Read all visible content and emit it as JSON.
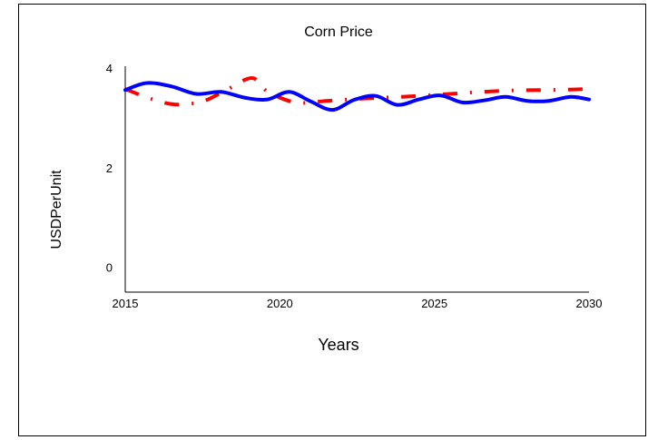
{
  "chart_data": {
    "type": "line",
    "title": "Corn Price",
    "xlabel": "Years",
    "ylabel": "USDPerUnit",
    "xlim": [
      2015,
      2030
    ],
    "ylim": [
      -0.5,
      4
    ],
    "x_ticks": [
      "2015",
      "2020",
      "2025",
      "2030"
    ],
    "y_ticks": [
      "0",
      "2",
      "4"
    ],
    "grid": false,
    "legend": "none",
    "series": [
      {
        "color": "#0000ff",
        "style": "solid",
        "x": [
          2015,
          2015.7,
          2016.5,
          2017.3,
          2018.1,
          2018.9,
          2019.6,
          2020.3,
          2021.0,
          2021.7,
          2022.4,
          2023.1,
          2023.8,
          2024.5,
          2025.2,
          2025.9,
          2026.6,
          2027.3,
          2028.0,
          2028.7,
          2029.4,
          2030
        ],
        "y": [
          3.56,
          3.7,
          3.63,
          3.48,
          3.52,
          3.4,
          3.37,
          3.52,
          3.33,
          3.16,
          3.36,
          3.44,
          3.26,
          3.37,
          3.45,
          3.31,
          3.35,
          3.42,
          3.34,
          3.34,
          3.42,
          3.37
        ]
      },
      {
        "color": "#ff0000",
        "style": "dash-dot",
        "x": [
          2015,
          2015.8,
          2016.6,
          2017.5,
          2018.3,
          2019.1,
          2019.6,
          2020.5,
          2021.5,
          2022.5,
          2023.5,
          2024.5,
          2025.5,
          2026.5,
          2027.5,
          2028.5,
          2029.5,
          2030
        ],
        "y": [
          3.58,
          3.39,
          3.27,
          3.33,
          3.57,
          3.8,
          3.53,
          3.31,
          3.34,
          3.38,
          3.41,
          3.44,
          3.48,
          3.52,
          3.55,
          3.56,
          3.57,
          3.58
        ]
      }
    ]
  }
}
